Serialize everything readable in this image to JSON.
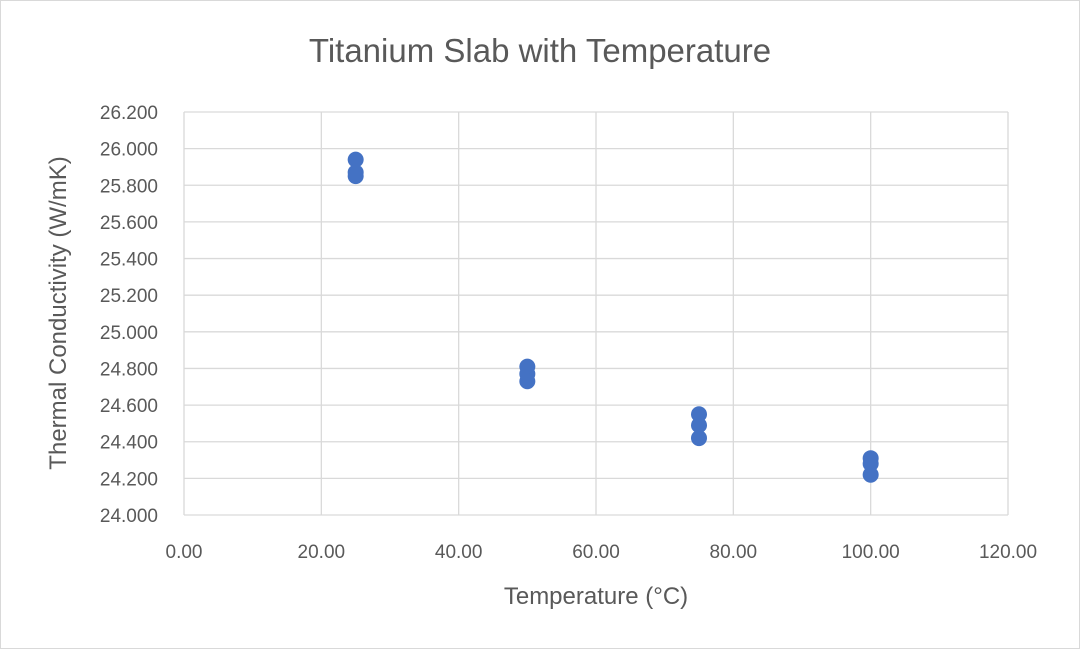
{
  "chart_data": {
    "type": "scatter",
    "title": "Titanium Slab with Temperature",
    "xlabel": "Temperature (°C)",
    "ylabel": "Thermal Conductivity (W/mK)",
    "xlim": [
      0,
      120
    ],
    "ylim": [
      24.0,
      26.2
    ],
    "x_ticks": [
      "0.00",
      "20.00",
      "40.00",
      "60.00",
      "80.00",
      "100.00",
      "120.00"
    ],
    "y_ticks": [
      "24.000",
      "24.200",
      "24.400",
      "24.600",
      "24.800",
      "25.000",
      "25.200",
      "25.400",
      "25.600",
      "25.800",
      "26.000",
      "26.200"
    ],
    "grid": true,
    "legend": "none",
    "marker_color": "#4472c4",
    "series": [
      {
        "points": [
          {
            "x": 25,
            "y": 25.94
          },
          {
            "x": 25,
            "y": 25.87
          },
          {
            "x": 25,
            "y": 25.85
          },
          {
            "x": 50,
            "y": 24.81
          },
          {
            "x": 50,
            "y": 24.77
          },
          {
            "x": 50,
            "y": 24.73
          },
          {
            "x": 75,
            "y": 24.55
          },
          {
            "x": 75,
            "y": 24.49
          },
          {
            "x": 75,
            "y": 24.42
          },
          {
            "x": 100,
            "y": 24.31
          },
          {
            "x": 100,
            "y": 24.28
          },
          {
            "x": 100,
            "y": 24.22
          }
        ]
      }
    ]
  }
}
